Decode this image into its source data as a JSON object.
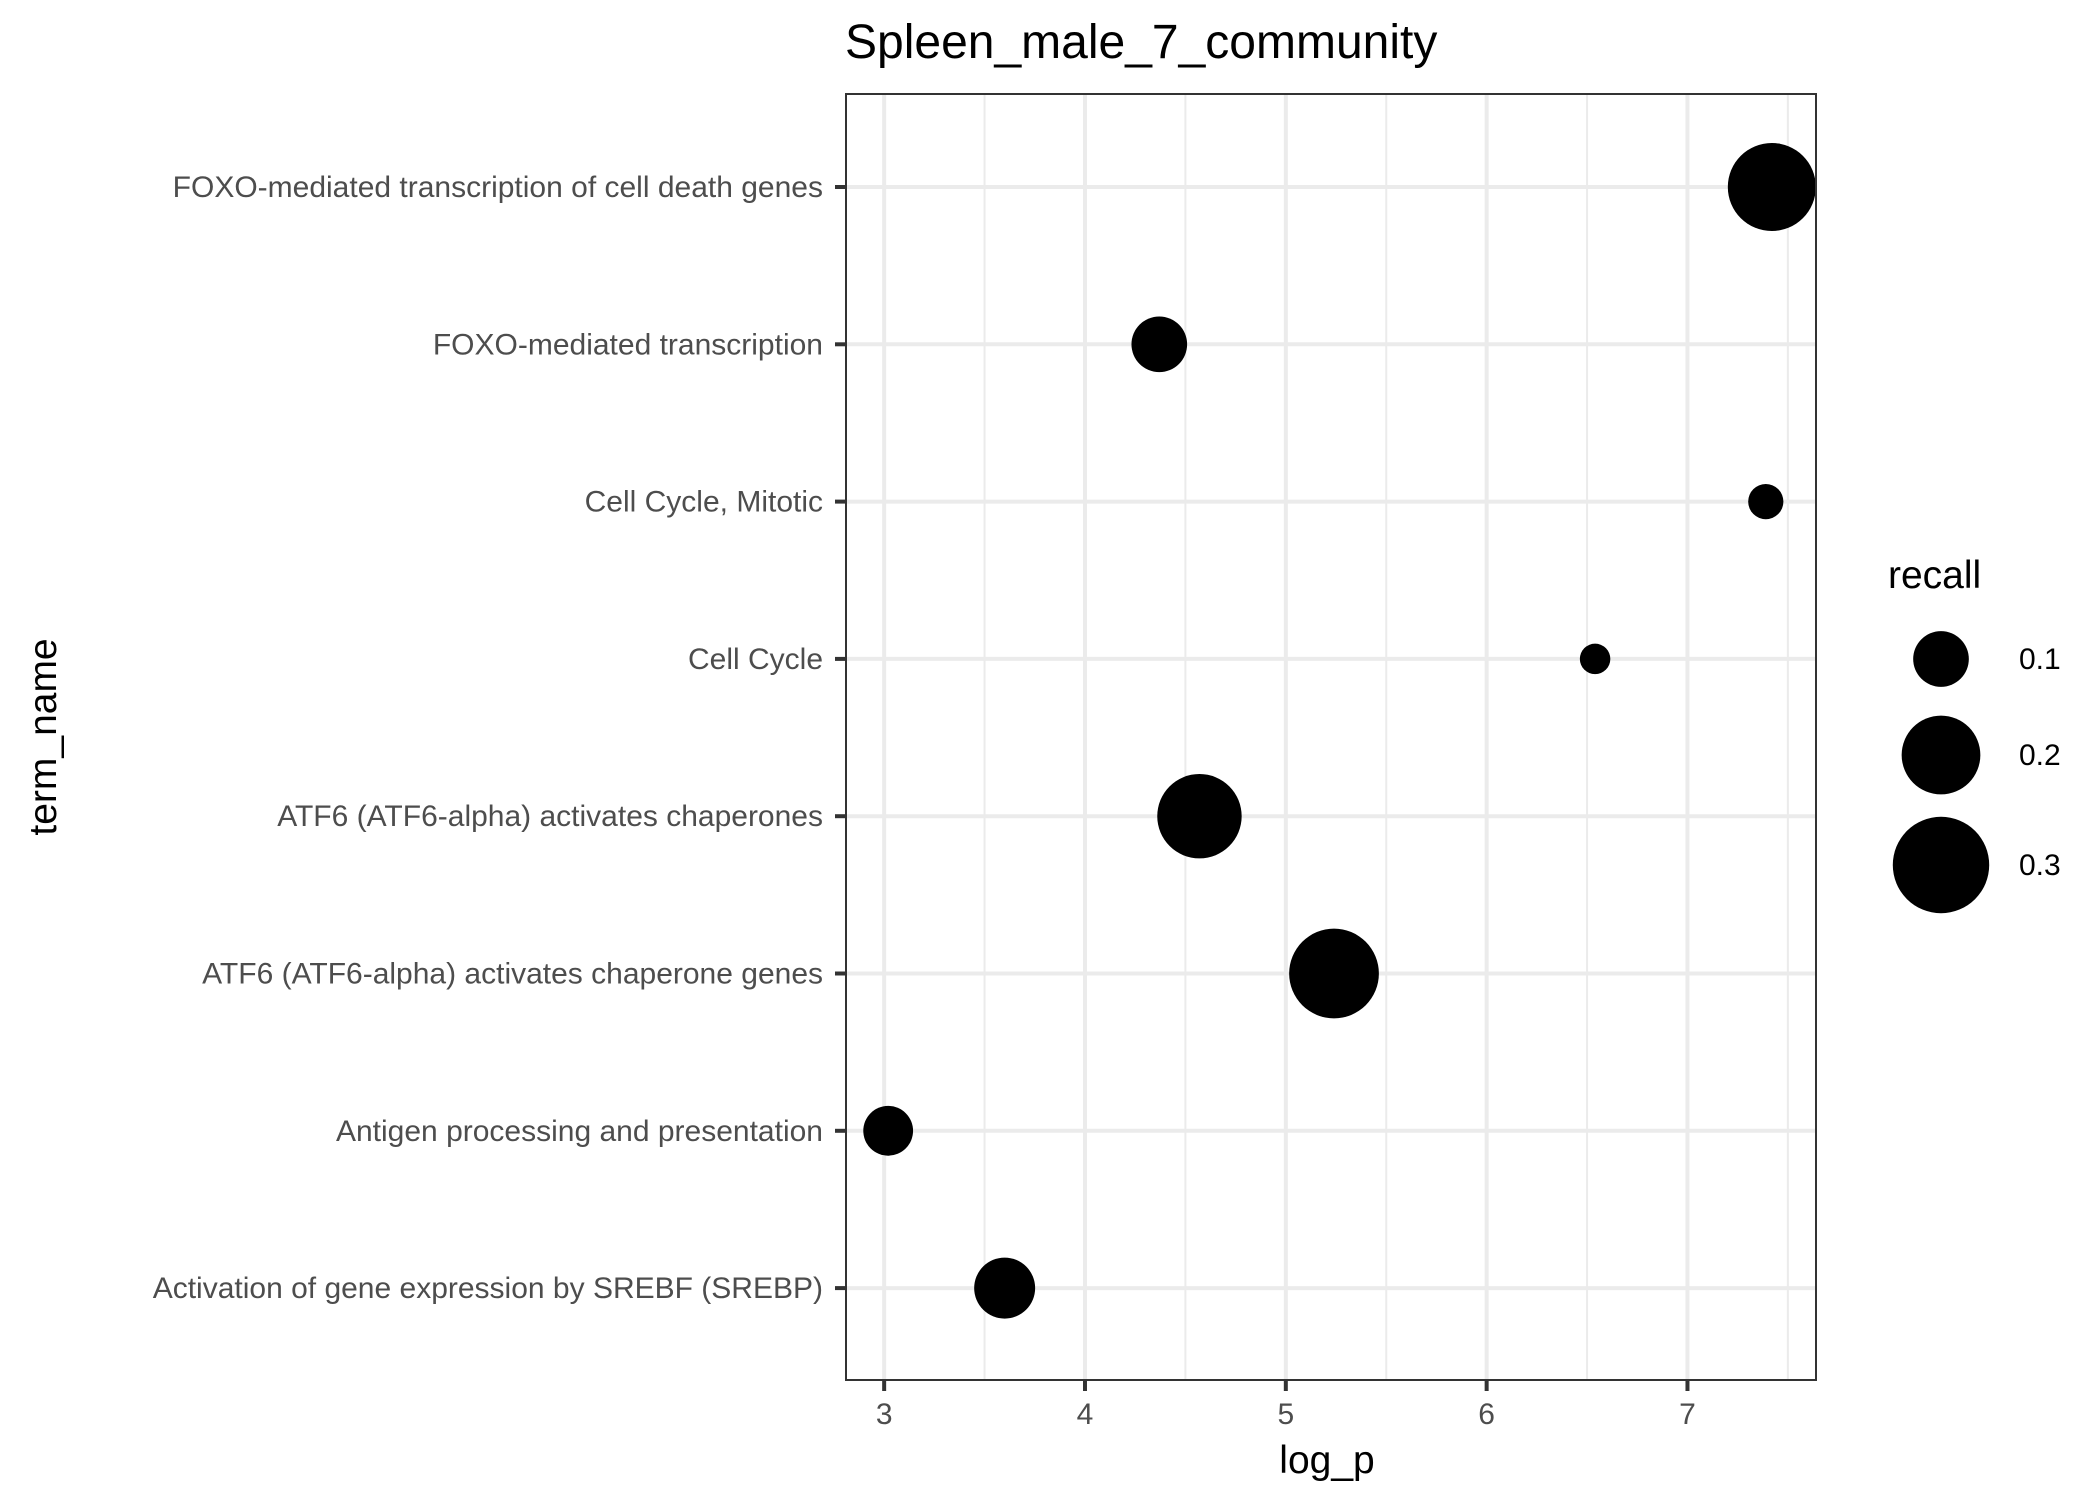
{
  "chart_data": {
    "type": "scatter",
    "title": "Spleen_male_7_community",
    "xlabel": "log_p",
    "ylabel": "term_name",
    "xlim": [
      2.81,
      7.64
    ],
    "x_ticks": [
      3,
      4,
      5,
      6,
      7
    ],
    "grid": true,
    "legend": {
      "title": "recall",
      "position": "right",
      "sizes": [
        0.1,
        0.2,
        0.3
      ],
      "labels": [
        "0.1",
        "0.2",
        "0.3"
      ]
    },
    "categories": [
      "FOXO-mediated transcription of cell death genes",
      "FOXO-mediated transcription",
      "Cell Cycle, Mitotic",
      "Cell Cycle",
      "ATF6 (ATF6-alpha) activates chaperones",
      "ATF6 (ATF6-alpha) activates chaperone genes",
      "Antigen processing and presentation",
      "Activation of gene expression by SREBF (SREBP)"
    ],
    "points": [
      {
        "term": "FOXO-mediated transcription of cell death genes",
        "x": 7.42,
        "recall": 0.25
      },
      {
        "term": "FOXO-mediated transcription",
        "x": 4.37,
        "recall": 0.1
      },
      {
        "term": "Cell Cycle, Mitotic",
        "x": 7.39,
        "recall": 0.04
      },
      {
        "term": "Cell Cycle",
        "x": 6.54,
        "recall": 0.03
      },
      {
        "term": "ATF6 (ATF6-alpha) activates chaperones",
        "x": 4.57,
        "recall": 0.23
      },
      {
        "term": "ATF6 (ATF6-alpha) activates chaperone genes",
        "x": 5.24,
        "recall": 0.26
      },
      {
        "term": "Antigen processing and presentation",
        "x": 3.02,
        "recall": 0.08
      },
      {
        "term": "Activation of gene expression by SREBF (SREBP)",
        "x": 3.6,
        "recall": 0.12
      }
    ],
    "colors": {
      "point": "#000000",
      "panel_border": "#333333",
      "grid": "#ebebeb",
      "tick_label": "#4d4d4d"
    }
  }
}
